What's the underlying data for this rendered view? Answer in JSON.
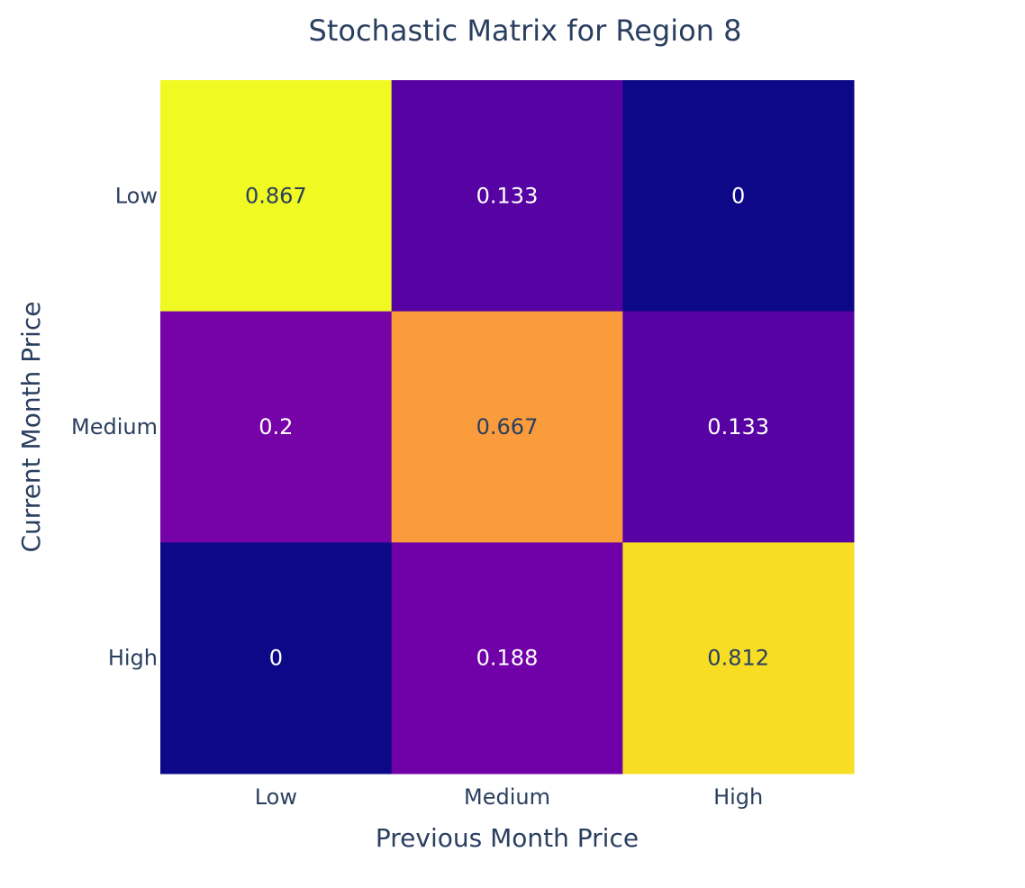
{
  "chart_data": {
    "type": "heatmap",
    "title": "Stochastic Matrix for Region 8",
    "xlabel": "Previous Month Price",
    "ylabel": "Current Month Price",
    "x_categories": [
      "Low",
      "Medium",
      "High"
    ],
    "y_categories": [
      "Low",
      "Medium",
      "High"
    ],
    "z": [
      [
        0.867,
        0.133,
        0
      ],
      [
        0.2,
        0.667,
        0.133
      ],
      [
        0,
        0.188,
        0.812
      ]
    ],
    "cell_labels": [
      [
        "0.867",
        "0.133",
        "0"
      ],
      [
        "0.2",
        "0.667",
        "0.133"
      ],
      [
        "0",
        "0.188",
        "0.812"
      ]
    ],
    "zrange": [
      0,
      0.867
    ],
    "colorscale": "Plasma",
    "colorscale_stops": [
      "#0d0887",
      "#46039f",
      "#7201a8",
      "#9c179e",
      "#bd3786",
      "#d8576b",
      "#ed7953",
      "#fb9f3a",
      "#fdca26",
      "#f0f921"
    ],
    "text_colors": {
      "dark": "#2a3f5f",
      "light": "#ffffff"
    },
    "grid": false,
    "legend": "none",
    "axis_color": "#2a3f5f"
  }
}
